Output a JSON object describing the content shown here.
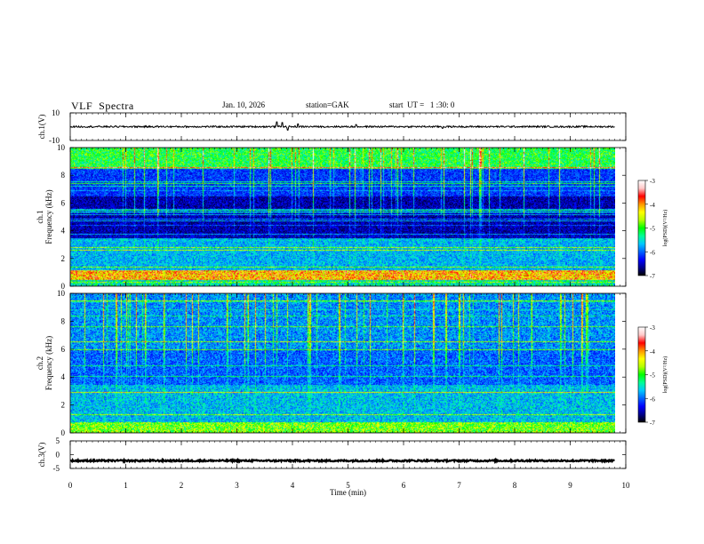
{
  "header": {
    "title": "VLF  Spectra",
    "date": "Jan. 10, 2026",
    "station": "station=GAK",
    "start": "start  UT =   1 :30: 0"
  },
  "colors": {
    "colormap": [
      "#000000",
      "#00008c",
      "#0000ff",
      "#0064ff",
      "#00c8ff",
      "#00ff96",
      "#00ff00",
      "#b4ff00",
      "#ffff00",
      "#ff9600",
      "#ff0000",
      "#ffc8c8",
      "#ffffff"
    ]
  },
  "chart_data": [
    {
      "type": "line",
      "name": "ch1-waveform",
      "ylabel": "ch.1(V)",
      "ylim": [
        -10,
        10
      ],
      "yticks": [
        "10",
        "-10"
      ],
      "baseline": 0,
      "noise_amplitude": 0.6,
      "spikes": [
        {
          "t": 3.72,
          "v": 3.5
        },
        {
          "t": 3.82,
          "v": 3.0
        },
        {
          "t": 3.92,
          "v": -2.5
        },
        {
          "t": 4.1,
          "v": 2.0
        },
        {
          "t": 5.15,
          "v": 1.5
        },
        {
          "t": 6.7,
          "v": -1.2
        }
      ]
    },
    {
      "type": "heatmap",
      "name": "ch1-spectrogram",
      "ylabel": "ch.1 Frequency (kHz)",
      "ylim": [
        0,
        10
      ],
      "yticks": [
        "0",
        "2",
        "4",
        "6",
        "8",
        "10"
      ],
      "xlim": [
        0,
        9.8
      ],
      "colorbar": {
        "label": "log(PSD)(V²/Hz)",
        "range": [
          -7,
          -3
        ],
        "ticks": [
          "-3",
          "-4",
          "-5",
          "-6",
          "-7"
        ]
      }
    },
    {
      "type": "heatmap",
      "name": "ch2-spectrogram",
      "ylabel": "ch.2 Frequency (kHz)",
      "ylim": [
        0,
        10
      ],
      "yticks": [
        "0",
        "2",
        "4",
        "6",
        "8",
        "10"
      ],
      "xlim": [
        0,
        9.8
      ],
      "colorbar": {
        "label": "log(PSD)(V²/Hz)",
        "range": [
          -7,
          -3
        ],
        "ticks": [
          "-3",
          "-4",
          "-5",
          "-6",
          "-7"
        ]
      }
    },
    {
      "type": "line",
      "name": "ch3-waveform",
      "ylabel": "ch.3(V)",
      "ylim": [
        -5,
        5
      ],
      "yticks": [
        "5",
        "0",
        "-5"
      ],
      "baseline": -2.2,
      "noise_amplitude": 0.3
    }
  ],
  "xaxis": {
    "label": "Time  (min)",
    "xlim": [
      0,
      10
    ],
    "ticks": [
      "0",
      "1",
      "2",
      "3",
      "4",
      "5",
      "6",
      "7",
      "8",
      "9",
      "10"
    ]
  }
}
